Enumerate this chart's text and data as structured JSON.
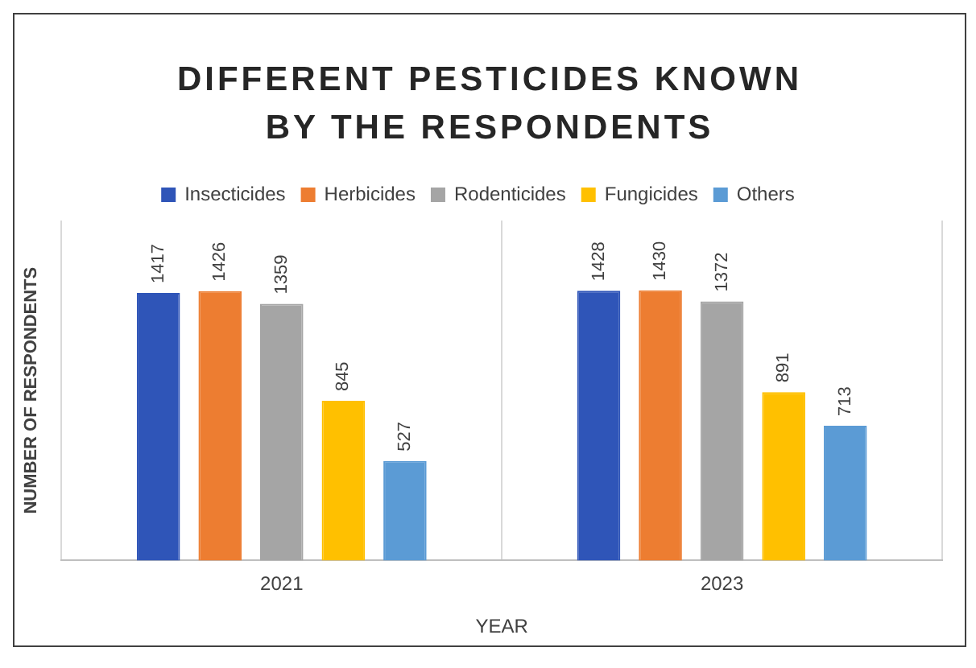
{
  "chart_data": {
    "type": "bar",
    "title": "DIFFERENT PESTICIDES KNOWN BY THE RESPONDENTS",
    "xlabel": "YEAR",
    "ylabel": "NUMBER OF RESPONDENTS",
    "categories": [
      "2021",
      "2023"
    ],
    "series": [
      {
        "name": "Insecticides",
        "color": "#2f55b8",
        "values": [
          1417,
          1428
        ]
      },
      {
        "name": "Herbicides",
        "color": "#ed7d31",
        "values": [
          1426,
          1430
        ]
      },
      {
        "name": "Rodenticides",
        "color": "#a5a5a5",
        "values": [
          1359,
          1372
        ]
      },
      {
        "name": "Fungicides",
        "color": "#ffc000",
        "values": [
          845,
          891
        ]
      },
      {
        "name": "Others",
        "color": "#5b9bd5",
        "values": [
          527,
          713
        ]
      }
    ],
    "data_labels": true,
    "legend": "top",
    "grid": "x"
  }
}
